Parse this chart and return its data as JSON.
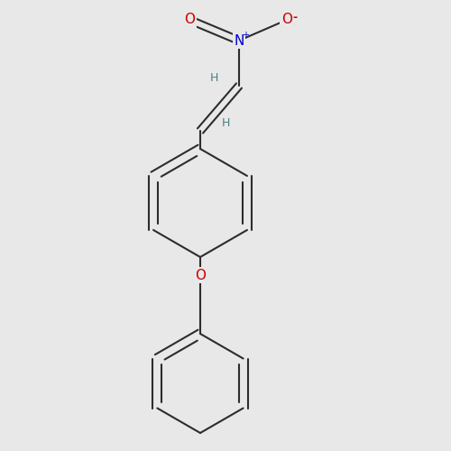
{
  "bg_color": "#e8e8e8",
  "bond_color": "#2d2d2d",
  "atom_colors": {
    "O": "#cc0000",
    "N": "#0000cc",
    "H": "#4a8080",
    "C": "#2d2d2d"
  },
  "bond_width": 1.5,
  "font_size_atom": 11,
  "font_size_H": 9,
  "font_size_charge": 8
}
